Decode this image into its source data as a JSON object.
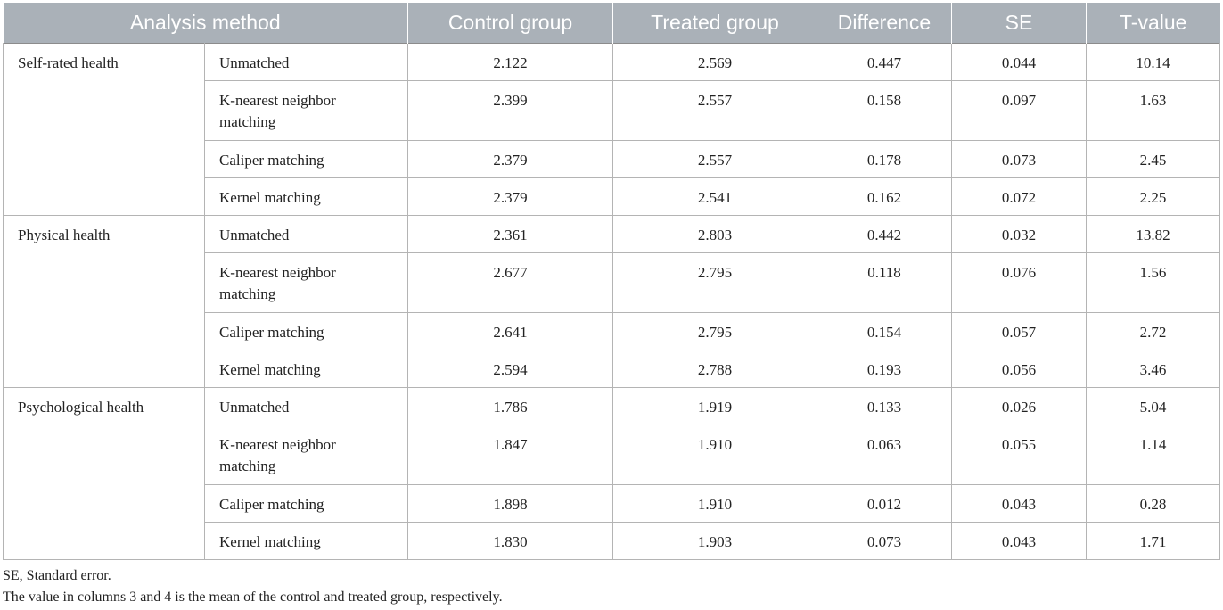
{
  "table": {
    "headers": [
      "Analysis method",
      "Control group",
      "Treated group",
      "Difference",
      "SE",
      "T-value"
    ],
    "groups": [
      {
        "name": "Self-rated health",
        "rows": [
          {
            "method": "Unmatched",
            "control": "2.122",
            "treated": "2.569",
            "difference": "0.447",
            "se": "0.044",
            "t": "10.14"
          },
          {
            "method": "K-nearest neighbor matching",
            "control": "2.399",
            "treated": "2.557",
            "difference": "0.158",
            "se": "0.097",
            "t": "1.63"
          },
          {
            "method": "Caliper matching",
            "control": "2.379",
            "treated": "2.557",
            "difference": "0.178",
            "se": "0.073",
            "t": "2.45"
          },
          {
            "method": "Kernel matching",
            "control": "2.379",
            "treated": "2.541",
            "difference": "0.162",
            "se": "0.072",
            "t": "2.25"
          }
        ]
      },
      {
        "name": "Physical health",
        "rows": [
          {
            "method": "Unmatched",
            "control": "2.361",
            "treated": "2.803",
            "difference": "0.442",
            "se": "0.032",
            "t": "13.82"
          },
          {
            "method": "K-nearest neighbor matching",
            "control": "2.677",
            "treated": "2.795",
            "difference": "0.118",
            "se": "0.076",
            "t": "1.56"
          },
          {
            "method": "Caliper matching",
            "control": "2.641",
            "treated": "2.795",
            "difference": "0.154",
            "se": "0.057",
            "t": "2.72"
          },
          {
            "method": "Kernel matching",
            "control": "2.594",
            "treated": "2.788",
            "difference": "0.193",
            "se": "0.056",
            "t": "3.46"
          }
        ]
      },
      {
        "name": "Psychological health",
        "rows": [
          {
            "method": "Unmatched",
            "control": "1.786",
            "treated": "1.919",
            "difference": "0.133",
            "se": "0.026",
            "t": "5.04"
          },
          {
            "method": "K-nearest neighbor matching",
            "control": "1.847",
            "treated": "1.910",
            "difference": "0.063",
            "se": "0.055",
            "t": "1.14"
          },
          {
            "method": "Caliper matching",
            "control": "1.898",
            "treated": "1.910",
            "difference": "0.012",
            "se": "0.043",
            "t": "0.28"
          },
          {
            "method": "Kernel matching",
            "control": "1.830",
            "treated": "1.903",
            "difference": "0.073",
            "se": "0.043",
            "t": "1.71"
          }
        ]
      }
    ]
  },
  "footnotes": [
    "SE, Standard error.",
    "The value in columns 3 and 4 is the mean of the control and treated group, respectively."
  ]
}
